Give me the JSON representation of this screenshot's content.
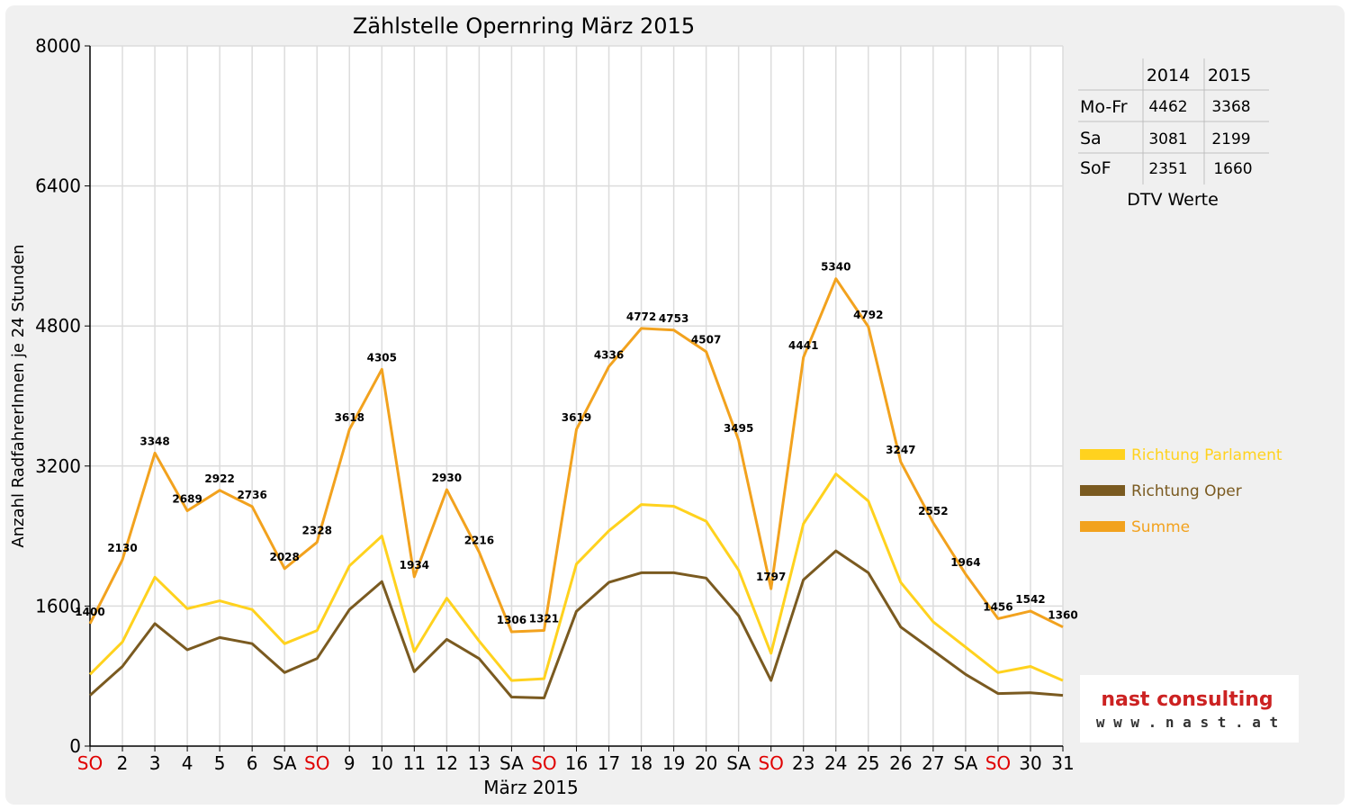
{
  "chart_data": {
    "type": "line",
    "title": "Zählstelle Opernring März 2015",
    "xlabel": "März 2015",
    "ylabel": "Anzahl RadfahrerInnen je 24 Stunden",
    "ylim": [
      0,
      8000
    ],
    "yticks": [
      "0",
      "1600",
      "3200",
      "4800",
      "6400",
      "8000"
    ],
    "grid": true,
    "legend_position": "right",
    "categories": [
      "SO",
      "2",
      "3",
      "4",
      "5",
      "6",
      "SA",
      "SO",
      "9",
      "10",
      "11",
      "12",
      "13",
      "SA",
      "SO",
      "16",
      "17",
      "18",
      "19",
      "20",
      "SA",
      "SO",
      "23",
      "24",
      "25",
      "26",
      "27",
      "SA",
      "SO",
      "30",
      "31"
    ],
    "weekend_color": "#e00000",
    "series": [
      {
        "name": "Richtung Parlament",
        "color": "#ffd21e",
        "values": [
          820,
          1190,
          1930,
          1570,
          1660,
          1560,
          1170,
          1320,
          2060,
          2400,
          1080,
          1690,
          1200,
          750,
          770,
          2080,
          2460,
          2760,
          2740,
          2570,
          2010,
          1060,
          2540,
          3110,
          2800,
          1870,
          1420,
          1130,
          840,
          910,
          750
        ]
      },
      {
        "name": "Richtung Oper",
        "color": "#7a5a20",
        "values": [
          580,
          910,
          1400,
          1100,
          1240,
          1170,
          840,
          1000,
          1560,
          1880,
          850,
          1220,
          1000,
          560,
          550,
          1540,
          1870,
          1980,
          1980,
          1920,
          1490,
          750,
          1900,
          2230,
          1980,
          1360,
          1090,
          820,
          600,
          610,
          580
        ]
      },
      {
        "name": "Summe",
        "color": "#f2a21e",
        "values": [
          1400,
          2130,
          3348,
          2689,
          2922,
          2736,
          2028,
          2328,
          3618,
          4305,
          1934,
          2930,
          2216,
          1306,
          1321,
          3619,
          4336,
          4772,
          4753,
          4507,
          3495,
          1797,
          4441,
          5340,
          4792,
          3247,
          2552,
          1964,
          1456,
          1542,
          1360
        ]
      }
    ]
  },
  "dtv_table": {
    "caption": "DTV Werte",
    "headers": [
      "",
      "2014",
      "2015"
    ],
    "rows": [
      {
        "label": "Mo-Fr",
        "y2014": "4462",
        "y2015": "3368"
      },
      {
        "label": "Sa",
        "y2014": "3081",
        "y2015": "2199"
      },
      {
        "label": "SoF",
        "y2014": "2351",
        "y2015": "1660"
      }
    ]
  },
  "logo": {
    "name": "nast consulting",
    "url_text": "w w w . n a s t . a t",
    "color": "#cc2222"
  }
}
